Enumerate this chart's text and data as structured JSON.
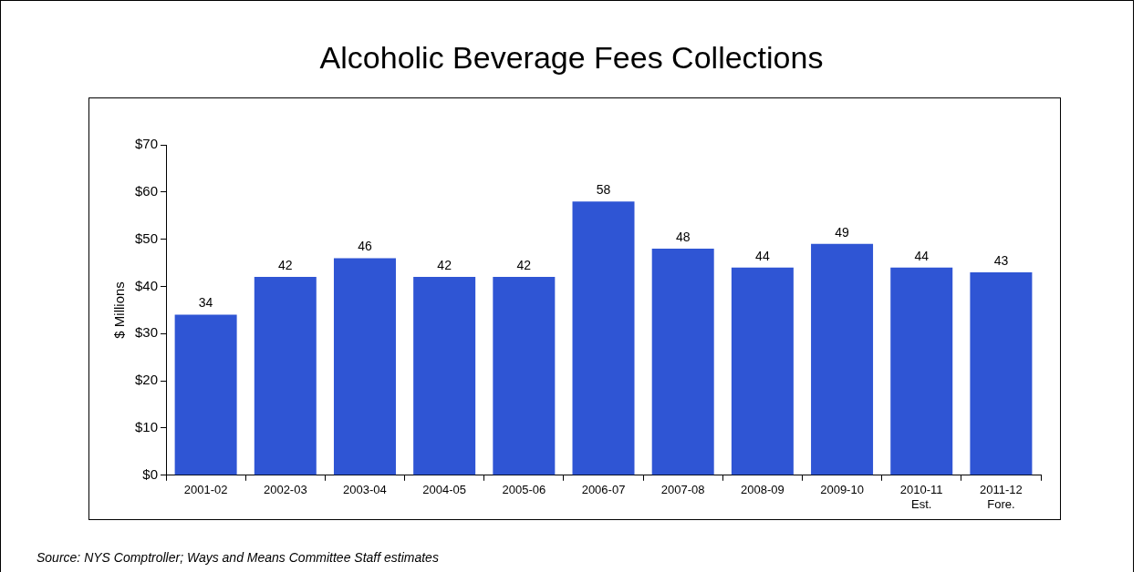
{
  "chart_data": {
    "type": "bar",
    "title": "Alcoholic Beverage Fees Collections",
    "ylabel": "$ Millions",
    "categories": [
      "2001-02",
      "2002-03",
      "2003-04",
      "2004-05",
      "2005-06",
      "2006-07",
      "2007-08",
      "2008-09",
      "2009-10",
      "2010-11\nEst.",
      "2011-12\nFore."
    ],
    "values": [
      34,
      42,
      46,
      42,
      42,
      58,
      48,
      44,
      49,
      44,
      43
    ],
    "color": "#2f55d4",
    "ylim": [
      0,
      70
    ],
    "yticks": [
      {
        "value": 0,
        "label": "$0"
      },
      {
        "value": 10,
        "label": "$10"
      },
      {
        "value": 20,
        "label": "$20"
      },
      {
        "value": 30,
        "label": "$30"
      },
      {
        "value": 40,
        "label": "$40"
      },
      {
        "value": 50,
        "label": "$50"
      },
      {
        "value": 60,
        "label": "$60"
      },
      {
        "value": 70,
        "label": "$70"
      }
    ],
    "grid": false,
    "legend": false,
    "data_labels": true,
    "annotations": [
      "Source:  NYS Comptroller;  Ways and Means Committee Staff estimates"
    ]
  }
}
